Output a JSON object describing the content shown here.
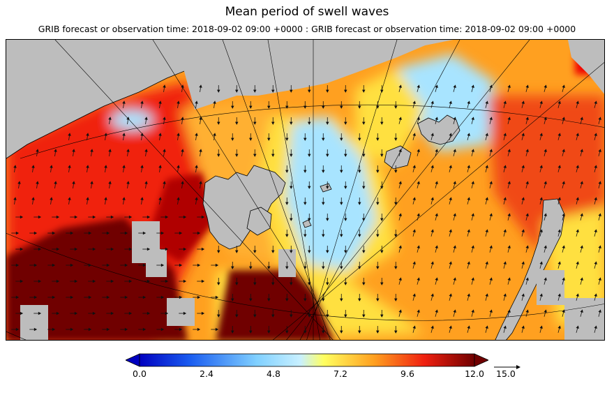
{
  "header": {
    "title": "Mean period of swell waves",
    "subtitle": "GRIB forecast or observation time: 2018-09-02 09:00 +0000 : GRIB forecast or observation time: 2018-09-02 09:00 +0000"
  },
  "colors": {
    "land": "#bdbdbd",
    "scale": [
      "#0a0ad0",
      "#2a6cf0",
      "#a0e0ff",
      "#ffff60",
      "#ffa020",
      "#f02010",
      "#700000"
    ]
  },
  "legend": {
    "min": 0.0,
    "max": 12.0,
    "ticks": [
      "0.0",
      "2.4",
      "4.8",
      "7.2",
      "9.6",
      "12.0"
    ],
    "arrow_label": "15.0"
  }
}
